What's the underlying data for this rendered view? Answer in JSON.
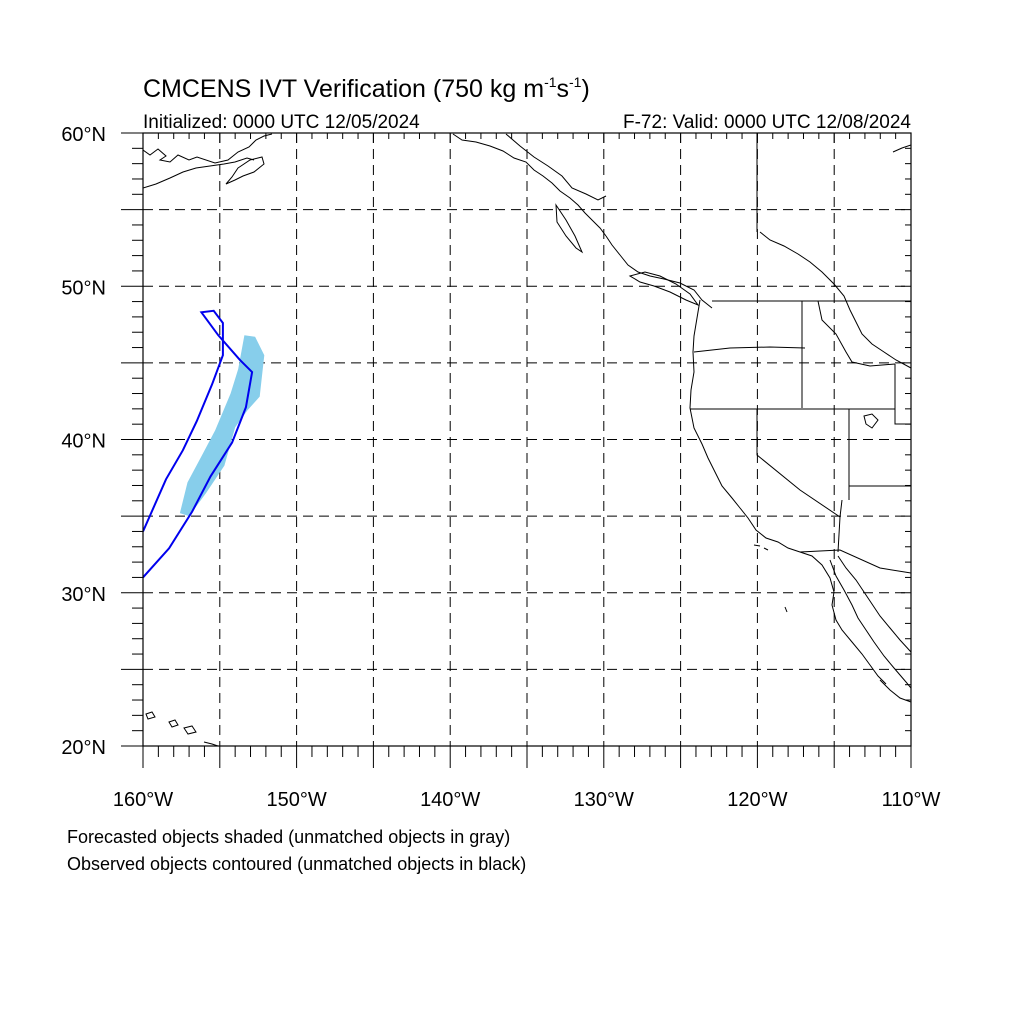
{
  "title": {
    "main": "CMCENS IVT Verification (750 kg m",
    "exp1": "-1",
    "mid": "s",
    "exp2": "-1",
    "close": ")"
  },
  "initialized": "Initialized: 0000 UTC 12/05/2024",
  "valid": "F-72: Valid: 0000 UTC 12/08/2024",
  "footnotes": {
    "line1": "Forecasted objects shaded (unmatched objects in gray)",
    "line2": "Observed objects contoured (unmatched objects in black)"
  },
  "map": {
    "lon_range": [
      -160,
      -110
    ],
    "lat_range": [
      20,
      60
    ],
    "grid": "dashed every 5 degrees",
    "lon_labels": [
      {
        "lon": -160,
        "text": "160°W"
      },
      {
        "lon": -150,
        "text": "150°W"
      },
      {
        "lon": -140,
        "text": "140°W"
      },
      {
        "lon": -130,
        "text": "130°W"
      },
      {
        "lon": -120,
        "text": "120°W"
      },
      {
        "lon": -110,
        "text": "110°W"
      }
    ],
    "lat_labels": [
      {
        "lat": 60,
        "text": "60°N"
      },
      {
        "lat": 50,
        "text": "50°N"
      },
      {
        "lat": 40,
        "text": "40°N"
      },
      {
        "lat": 30,
        "text": "30°N"
      },
      {
        "lat": 20,
        "text": "20°N"
      }
    ],
    "forecast_object": {
      "color": "#87ceeb",
      "points": [
        [
          -153.4,
          46.8
        ],
        [
          -152.7,
          46.7
        ],
        [
          -152.1,
          45.5
        ],
        [
          -152.4,
          42.8
        ],
        [
          -153.2,
          41.9
        ],
        [
          -154.0,
          40.8
        ],
        [
          -154.7,
          38.3
        ],
        [
          -155.9,
          36.5
        ],
        [
          -157.0,
          35.0
        ],
        [
          -157.6,
          35.2
        ],
        [
          -157.1,
          37.2
        ],
        [
          -156.2,
          38.9
        ],
        [
          -155.3,
          40.6
        ],
        [
          -154.3,
          43.0
        ],
        [
          -153.8,
          44.6
        ]
      ]
    },
    "observed_object": {
      "color": "#0000ee",
      "points": [
        [
          -160.0,
          34.0
        ],
        [
          -158.5,
          37.4
        ],
        [
          -157.4,
          39.3
        ],
        [
          -156.5,
          41.2
        ],
        [
          -155.5,
          43.6
        ],
        [
          -154.8,
          45.5
        ],
        [
          -154.8,
          47.6
        ],
        [
          -155.4,
          48.4
        ],
        [
          -156.2,
          48.3
        ],
        [
          -155.1,
          46.8
        ],
        [
          -153.7,
          45.2
        ],
        [
          -152.9,
          44.4
        ],
        [
          -153.3,
          42.1
        ],
        [
          -154.2,
          39.8
        ],
        [
          -155.6,
          37.6
        ],
        [
          -156.8,
          35.3
        ],
        [
          -158.3,
          32.9
        ],
        [
          -160.0,
          31.0
        ]
      ]
    }
  }
}
